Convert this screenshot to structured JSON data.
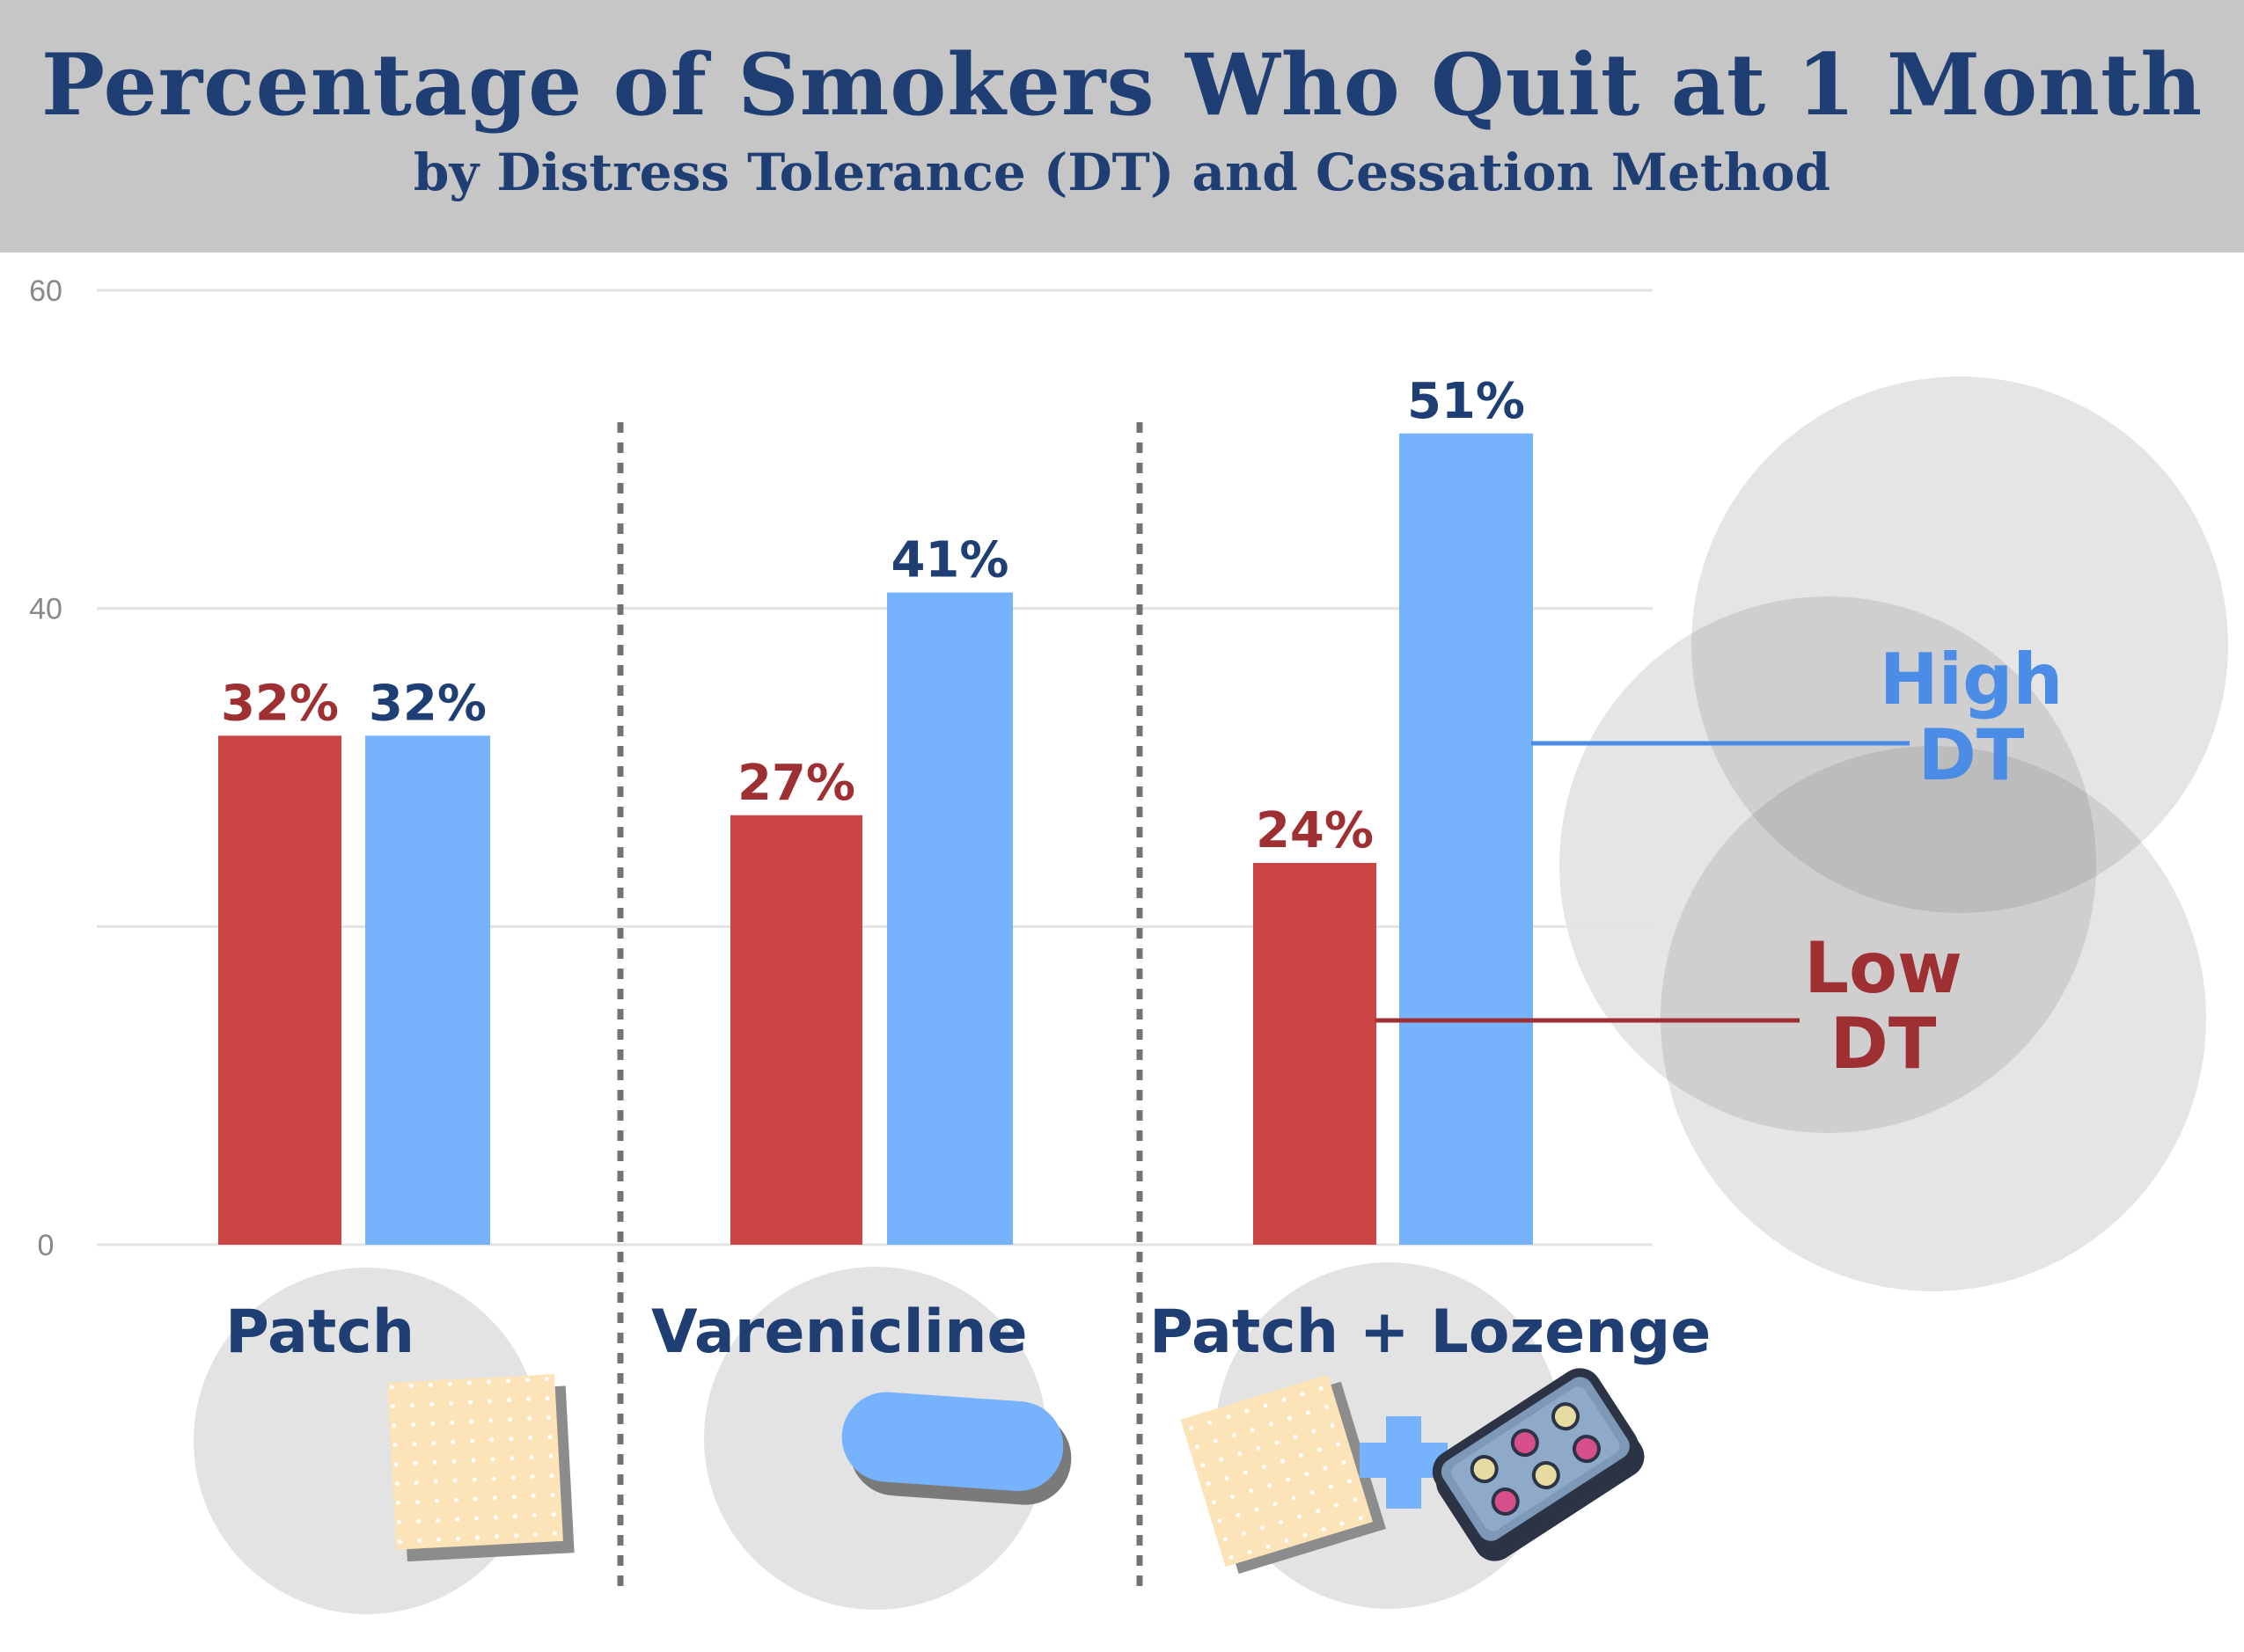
{
  "header": {
    "title": "Percentage of Smokers Who Quit at 1 Month",
    "subtitle": "by Distress Tolerance (DT) and Cessation Method"
  },
  "legend": {
    "high_line1": "High",
    "high_line2": "DT",
    "low_line1": "Low",
    "low_line2": "DT"
  },
  "colors": {
    "low_dt": "#cc4545",
    "high_dt": "#77b3fc",
    "low_text": "#9e2f32",
    "high_text": "#1f3f74",
    "legend_high": "#4b8de6"
  },
  "icons": [
    "patch-icon",
    "pill-icon",
    "patch-icon",
    "plus-icon",
    "lozenge-blister-icon"
  ],
  "chart_data": {
    "type": "bar",
    "categories": [
      "Patch",
      "Varenicline",
      "Patch + Lozenge"
    ],
    "series": [
      {
        "name": "Low DT",
        "values": [
          32,
          27,
          24
        ],
        "labels": [
          "32%",
          "27%",
          "24%"
        ]
      },
      {
        "name": "High DT",
        "values": [
          32,
          41,
          51
        ],
        "labels": [
          "32%",
          "41%",
          "51%"
        ]
      }
    ],
    "title": "Percentage of Smokers Who Quit at 1 Month",
    "subtitle": "by Distress Tolerance (DT) and Cessation Method",
    "ylim": [
      0,
      60
    ],
    "yticks": [
      0,
      40,
      60
    ],
    "ytick_labels": [
      "0",
      "40",
      "60"
    ],
    "grid": true,
    "legend_position": "right"
  }
}
